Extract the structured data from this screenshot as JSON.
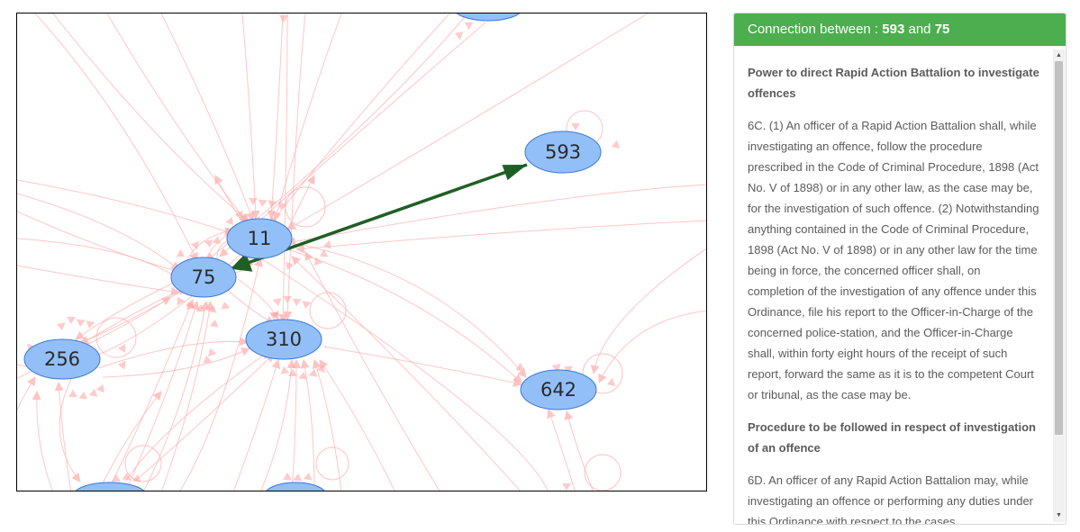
{
  "graph": {
    "nodes": [
      {
        "id": "n-top",
        "label": ""
      },
      {
        "id": "n593",
        "label": "593"
      },
      {
        "id": "n11",
        "label": "11"
      },
      {
        "id": "n75",
        "label": "75"
      },
      {
        "id": "n310",
        "label": "310"
      },
      {
        "id": "n256",
        "label": "256"
      },
      {
        "id": "n642",
        "label": "642"
      },
      {
        "id": "n-bottom-left",
        "label": ""
      },
      {
        "id": "n-bottom-mid",
        "label": ""
      }
    ],
    "highlight_edge": {
      "from": "593",
      "to": "75",
      "color": "#1f5f25"
    },
    "node_fill": "#93bff8",
    "node_stroke": "#3a78d4",
    "edge_color": "#ffb3b3"
  },
  "panel": {
    "header_prefix": "Connection between : ",
    "from_id": "593",
    "joiner": " and ",
    "to_id": "75",
    "header_color": "#4cae4f",
    "sections": [
      {
        "title": "Power to direct Rapid Action Battalion to investigate offences",
        "body": "6C. (1) An officer of a Rapid Action Battalion shall, while investigating an offence, follow the procedure prescribed in the Code of Criminal Procedure, 1898 (Act No. V of 1898) or in any other law, as the case may be, for the investigation of such offence. (2) Notwithstanding anything contained in the Code of Criminal Procedure, 1898 (Act No. V of 1898) or in any other law for the time being in force, the concerned officer shall, on completion of the investigation of any offence under this Ordinance, file his report to the Officer-in-Charge of the concerned police-station, and the Officer-in-Charge shall, within forty eight hours of the receipt of such report, forward the same as it is to the competent Court or tribunal, as the case may be."
      },
      {
        "title": "Procedure to be followed in respect of investigation of an offence",
        "body": "6D. An officer of any Rapid Action Battalion may, while investigating an offence or performing any duties under this Ordinance with respect to the cases"
      }
    ]
  }
}
